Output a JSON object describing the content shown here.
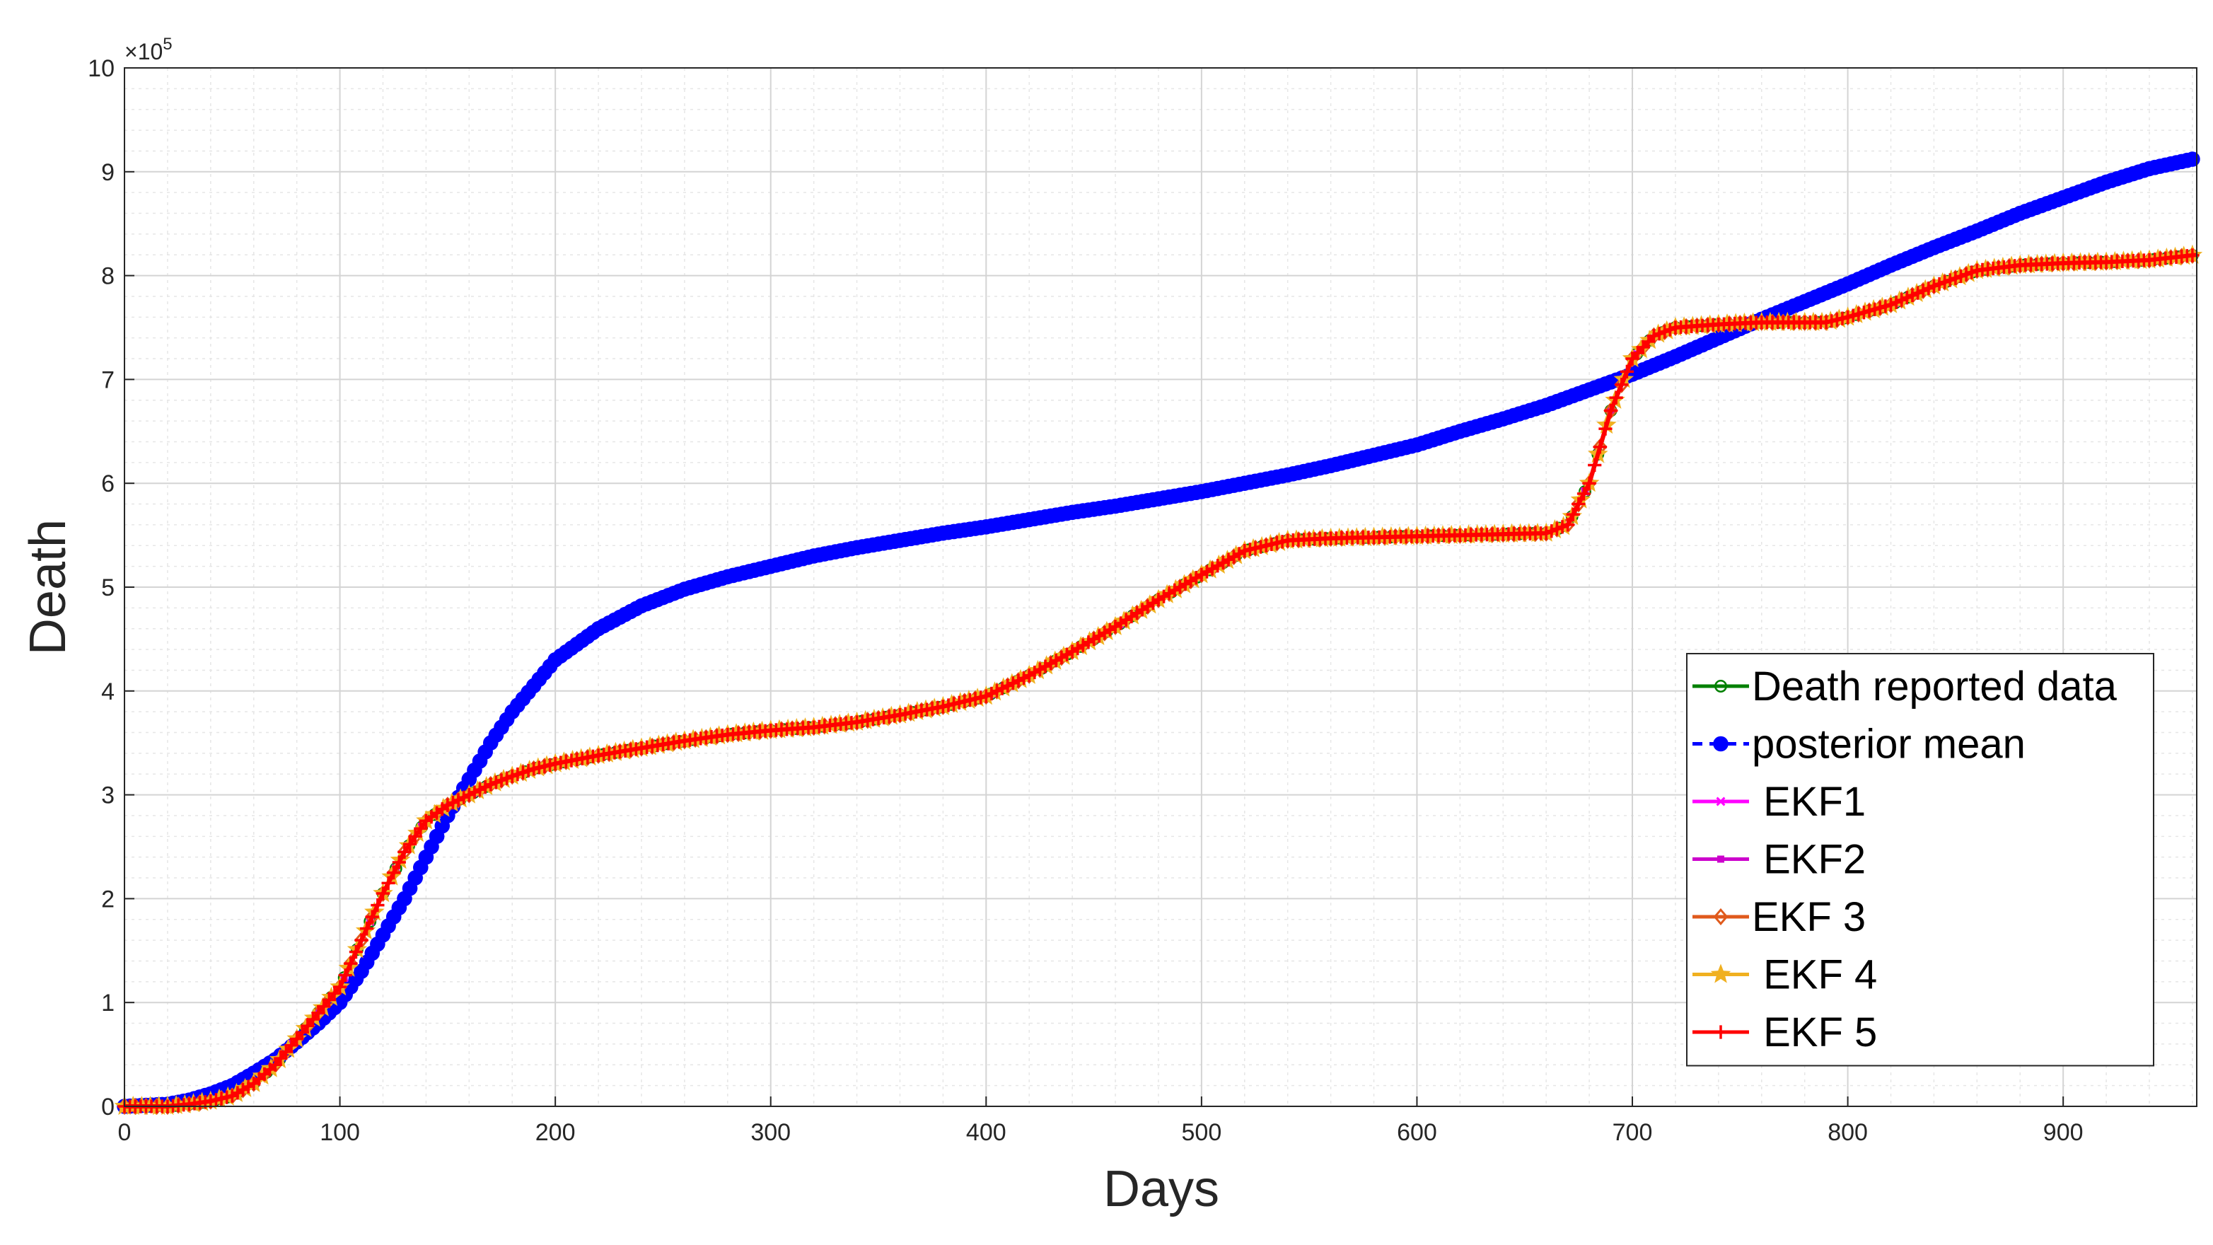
{
  "chart_data": {
    "type": "line",
    "title": "",
    "xlabel": "Days",
    "ylabel": "Death",
    "xlim": [
      0,
      962
    ],
    "ylim": [
      0,
      10
    ],
    "y_exponent_label": "×10",
    "y_exponent_power": "5",
    "x_ticks": [
      0,
      100,
      200,
      300,
      400,
      500,
      600,
      700,
      800,
      900
    ],
    "y_ticks": [
      0,
      1,
      2,
      3,
      4,
      5,
      6,
      7,
      8,
      9,
      10
    ],
    "grid": true,
    "minor_grid": true,
    "legend_position": "lower-right",
    "series": [
      {
        "name": "Death reported data",
        "color": "#008000",
        "marker": "circle",
        "line": "solid",
        "x": [
          0,
          20,
          30,
          40,
          50,
          60,
          70,
          80,
          90,
          100,
          110,
          120,
          130,
          140,
          150,
          160,
          170,
          180,
          190,
          200,
          220,
          240,
          260,
          280,
          300,
          320,
          340,
          360,
          380,
          400,
          420,
          440,
          460,
          480,
          500,
          520,
          540,
          560,
          580,
          600,
          620,
          640,
          660,
          670,
          680,
          690,
          700,
          710,
          720,
          740,
          760,
          780,
          790,
          800,
          820,
          840,
          860,
          880,
          900,
          920,
          940,
          962
        ],
        "y": [
          0,
          0.0,
          0.02,
          0.05,
          0.1,
          0.22,
          0.4,
          0.65,
          0.9,
          1.15,
          1.6,
          2.05,
          2.45,
          2.75,
          2.9,
          3.0,
          3.1,
          3.18,
          3.25,
          3.3,
          3.38,
          3.45,
          3.52,
          3.58,
          3.62,
          3.65,
          3.7,
          3.77,
          3.85,
          3.95,
          4.15,
          4.38,
          4.62,
          4.88,
          5.12,
          5.35,
          5.45,
          5.47,
          5.48,
          5.49,
          5.5,
          5.51,
          5.52,
          5.6,
          6.0,
          6.7,
          7.2,
          7.42,
          7.5,
          7.53,
          7.55,
          7.55,
          7.55,
          7.6,
          7.72,
          7.9,
          8.05,
          8.1,
          8.12,
          8.13,
          8.15,
          8.2
        ]
      },
      {
        "name": "posterior mean",
        "color": "#0000ff",
        "marker": "dot",
        "line": "dashed",
        "x": [
          0,
          20,
          30,
          40,
          50,
          60,
          70,
          80,
          90,
          100,
          110,
          120,
          130,
          140,
          150,
          160,
          170,
          180,
          190,
          200,
          220,
          240,
          260,
          280,
          300,
          320,
          340,
          360,
          380,
          400,
          420,
          440,
          460,
          480,
          500,
          520,
          540,
          560,
          580,
          600,
          620,
          640,
          660,
          680,
          700,
          720,
          740,
          760,
          780,
          800,
          820,
          840,
          860,
          880,
          900,
          920,
          940,
          962
        ],
        "y": [
          0,
          0.02,
          0.06,
          0.12,
          0.2,
          0.32,
          0.45,
          0.62,
          0.8,
          1.0,
          1.3,
          1.65,
          2.0,
          2.4,
          2.8,
          3.15,
          3.5,
          3.8,
          4.05,
          4.3,
          4.6,
          4.82,
          4.98,
          5.1,
          5.2,
          5.3,
          5.38,
          5.45,
          5.52,
          5.58,
          5.65,
          5.72,
          5.78,
          5.85,
          5.92,
          6.0,
          6.08,
          6.17,
          6.27,
          6.37,
          6.5,
          6.62,
          6.75,
          6.9,
          7.05,
          7.22,
          7.4,
          7.58,
          7.75,
          7.92,
          8.1,
          8.27,
          8.43,
          8.6,
          8.75,
          8.9,
          9.03,
          9.13
        ]
      },
      {
        "name": " EKF1",
        "color": "#ff00ff",
        "marker": "x",
        "line": "solid",
        "x": [
          0,
          20,
          30,
          40,
          50,
          60,
          70,
          80,
          90,
          100,
          110,
          120,
          130,
          140,
          150,
          160,
          170,
          180,
          190,
          200,
          220,
          240,
          260,
          280,
          300,
          320,
          340,
          360,
          380,
          400,
          420,
          440,
          460,
          480,
          500,
          520,
          540,
          560,
          580,
          600,
          620,
          640,
          660,
          670,
          680,
          690,
          700,
          710,
          720,
          740,
          760,
          780,
          790,
          800,
          820,
          840,
          860,
          880,
          900,
          920,
          940,
          962
        ],
        "y": [
          0,
          0.0,
          0.02,
          0.05,
          0.1,
          0.22,
          0.4,
          0.65,
          0.9,
          1.15,
          1.6,
          2.05,
          2.45,
          2.75,
          2.9,
          3.0,
          3.1,
          3.18,
          3.25,
          3.3,
          3.38,
          3.45,
          3.52,
          3.58,
          3.62,
          3.65,
          3.7,
          3.77,
          3.85,
          3.95,
          4.15,
          4.38,
          4.62,
          4.88,
          5.12,
          5.35,
          5.45,
          5.47,
          5.48,
          5.49,
          5.5,
          5.51,
          5.52,
          5.6,
          6.0,
          6.7,
          7.2,
          7.42,
          7.5,
          7.53,
          7.55,
          7.55,
          7.55,
          7.6,
          7.72,
          7.9,
          8.05,
          8.1,
          8.12,
          8.13,
          8.15,
          8.2
        ]
      },
      {
        "name": " EKF2",
        "color": "#cc00cc",
        "marker": "square",
        "line": "solid",
        "x": [
          0,
          20,
          30,
          40,
          50,
          60,
          70,
          80,
          90,
          100,
          110,
          120,
          130,
          140,
          150,
          160,
          170,
          180,
          190,
          200,
          220,
          240,
          260,
          280,
          300,
          320,
          340,
          360,
          380,
          400,
          420,
          440,
          460,
          480,
          500,
          520,
          540,
          560,
          580,
          600,
          620,
          640,
          660,
          670,
          680,
          690,
          700,
          710,
          720,
          740,
          760,
          780,
          790,
          800,
          820,
          840,
          860,
          880,
          900,
          920,
          940,
          962
        ],
        "y": [
          0,
          0.0,
          0.02,
          0.05,
          0.1,
          0.22,
          0.4,
          0.65,
          0.9,
          1.15,
          1.6,
          2.05,
          2.45,
          2.75,
          2.9,
          3.0,
          3.1,
          3.18,
          3.25,
          3.3,
          3.38,
          3.45,
          3.52,
          3.58,
          3.62,
          3.65,
          3.7,
          3.77,
          3.85,
          3.95,
          4.15,
          4.38,
          4.62,
          4.88,
          5.12,
          5.35,
          5.45,
          5.47,
          5.48,
          5.49,
          5.5,
          5.51,
          5.52,
          5.6,
          6.0,
          6.7,
          7.2,
          7.42,
          7.5,
          7.53,
          7.55,
          7.55,
          7.55,
          7.6,
          7.72,
          7.9,
          8.05,
          8.1,
          8.12,
          8.13,
          8.15,
          8.2
        ]
      },
      {
        "name": "EKF 3",
        "color": "#e05a1c",
        "marker": "diamond",
        "line": "solid",
        "x": [
          0,
          20,
          30,
          40,
          50,
          60,
          70,
          80,
          90,
          100,
          110,
          120,
          130,
          140,
          150,
          160,
          170,
          180,
          190,
          200,
          220,
          240,
          260,
          280,
          300,
          320,
          340,
          360,
          380,
          400,
          420,
          440,
          460,
          480,
          500,
          520,
          540,
          560,
          580,
          600,
          620,
          640,
          660,
          670,
          680,
          690,
          700,
          710,
          720,
          740,
          760,
          780,
          790,
          800,
          820,
          840,
          860,
          880,
          900,
          920,
          940,
          962
        ],
        "y": [
          0,
          0.0,
          0.02,
          0.05,
          0.1,
          0.22,
          0.4,
          0.65,
          0.9,
          1.15,
          1.6,
          2.05,
          2.45,
          2.75,
          2.9,
          3.0,
          3.1,
          3.18,
          3.25,
          3.3,
          3.38,
          3.45,
          3.52,
          3.58,
          3.62,
          3.65,
          3.7,
          3.77,
          3.85,
          3.95,
          4.15,
          4.38,
          4.62,
          4.88,
          5.12,
          5.35,
          5.45,
          5.47,
          5.48,
          5.49,
          5.5,
          5.51,
          5.52,
          5.6,
          6.0,
          6.7,
          7.2,
          7.42,
          7.5,
          7.53,
          7.55,
          7.55,
          7.55,
          7.6,
          7.72,
          7.9,
          8.05,
          8.1,
          8.12,
          8.13,
          8.15,
          8.2
        ]
      },
      {
        "name": " EKF 4",
        "color": "#f0b020",
        "marker": "star",
        "line": "solid",
        "x": [
          0,
          20,
          30,
          40,
          50,
          60,
          70,
          80,
          90,
          100,
          110,
          120,
          130,
          140,
          150,
          160,
          170,
          180,
          190,
          200,
          220,
          240,
          260,
          280,
          300,
          320,
          340,
          360,
          380,
          400,
          420,
          440,
          460,
          480,
          500,
          520,
          540,
          560,
          580,
          600,
          620,
          640,
          660,
          670,
          680,
          690,
          700,
          710,
          720,
          740,
          760,
          780,
          790,
          800,
          820,
          840,
          860,
          880,
          900,
          920,
          940,
          962
        ],
        "y": [
          0,
          0.0,
          0.02,
          0.05,
          0.1,
          0.22,
          0.4,
          0.65,
          0.9,
          1.15,
          1.6,
          2.05,
          2.45,
          2.75,
          2.9,
          3.0,
          3.1,
          3.18,
          3.25,
          3.3,
          3.38,
          3.45,
          3.52,
          3.58,
          3.62,
          3.65,
          3.7,
          3.77,
          3.85,
          3.95,
          4.15,
          4.38,
          4.62,
          4.88,
          5.12,
          5.35,
          5.45,
          5.47,
          5.48,
          5.49,
          5.5,
          5.51,
          5.52,
          5.6,
          6.0,
          6.7,
          7.2,
          7.42,
          7.5,
          7.53,
          7.55,
          7.55,
          7.55,
          7.6,
          7.72,
          7.9,
          8.05,
          8.1,
          8.12,
          8.13,
          8.15,
          8.2
        ]
      },
      {
        "name": " EKF 5",
        "color": "#ff0000",
        "marker": "plus",
        "line": "solid",
        "x": [
          0,
          20,
          30,
          40,
          50,
          60,
          70,
          80,
          90,
          100,
          110,
          120,
          130,
          140,
          150,
          160,
          170,
          180,
          190,
          200,
          220,
          240,
          260,
          280,
          300,
          320,
          340,
          360,
          380,
          400,
          420,
          440,
          460,
          480,
          500,
          520,
          540,
          560,
          580,
          600,
          620,
          640,
          660,
          670,
          680,
          690,
          700,
          710,
          720,
          740,
          760,
          780,
          790,
          800,
          820,
          840,
          860,
          880,
          900,
          920,
          940,
          962
        ],
        "y": [
          0,
          0.0,
          0.02,
          0.05,
          0.1,
          0.22,
          0.4,
          0.65,
          0.9,
          1.15,
          1.6,
          2.05,
          2.45,
          2.75,
          2.9,
          3.0,
          3.1,
          3.18,
          3.25,
          3.3,
          3.38,
          3.45,
          3.52,
          3.58,
          3.62,
          3.65,
          3.7,
          3.77,
          3.85,
          3.95,
          4.15,
          4.38,
          4.62,
          4.88,
          5.12,
          5.35,
          5.45,
          5.47,
          5.48,
          5.49,
          5.5,
          5.51,
          5.52,
          5.6,
          6.0,
          6.7,
          7.2,
          7.42,
          7.5,
          7.53,
          7.55,
          7.55,
          7.55,
          7.6,
          7.72,
          7.9,
          8.05,
          8.1,
          8.12,
          8.13,
          8.15,
          8.2
        ]
      }
    ]
  }
}
